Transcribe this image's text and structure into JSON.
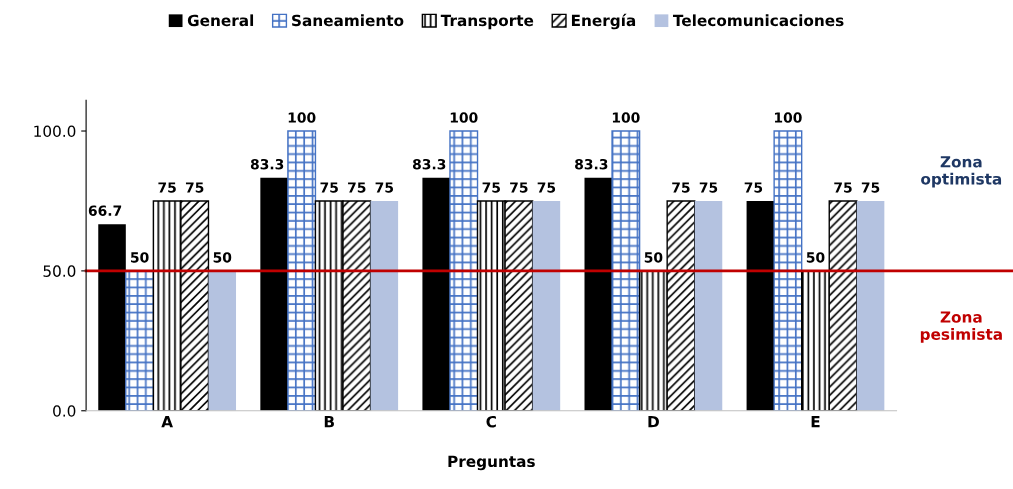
{
  "chart_data": {
    "type": "bar",
    "xlabel": "Preguntas",
    "categories": [
      "A",
      "B",
      "C",
      "D",
      "E"
    ],
    "series": [
      {
        "name": "General",
        "color": "#000000",
        "values": [
          66.7,
          83.3,
          83.3,
          83.3,
          75
        ]
      },
      {
        "name": "Saneamiento",
        "color": "#4472c4",
        "values": [
          50,
          100,
          100,
          100,
          100
        ]
      },
      {
        "name": "Transporte",
        "color": "#000000",
        "values": [
          75,
          75,
          75,
          50,
          50
        ]
      },
      {
        "name": "Energía",
        "color": "#000000",
        "values": [
          75,
          75,
          75,
          75,
          75
        ]
      },
      {
        "name": "Telecomunicaciones",
        "color": "#b4c2e0",
        "values": [
          50,
          75,
          75,
          75,
          75
        ]
      }
    ],
    "ylim": [
      0,
      111
    ],
    "yticks": [
      {
        "value": 0,
        "label": "0.0"
      },
      {
        "value": 50,
        "label": "50.0"
      },
      {
        "value": 100,
        "label": "100.0"
      }
    ],
    "ref_lines": [
      {
        "axis": "y",
        "value": 50,
        "color": "#c00000"
      }
    ],
    "annotations": [
      "Zona\noptimista",
      "Zona\npesimista"
    ],
    "data_labels": true,
    "grid": false,
    "legend": "top"
  }
}
